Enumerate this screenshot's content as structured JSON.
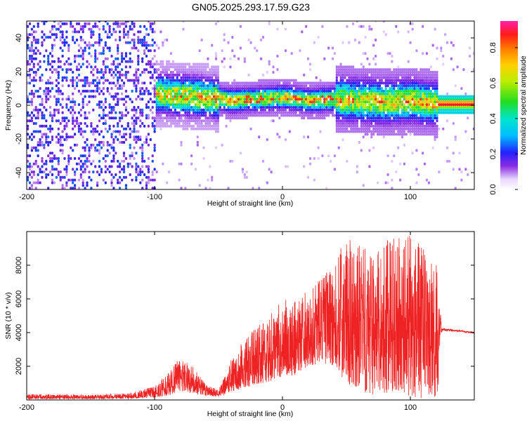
{
  "title": "GN05.2025.293.17.59.G23",
  "colors": {
    "snr_line": "#ee2222",
    "background": "#ffffff",
    "axis": "#000000"
  },
  "chart_data": [
    {
      "type": "heatmap",
      "name": "spectrogram",
      "xlabel": "Height of straight line (km)",
      "ylabel": "Frequency (Hz)",
      "xlim": [
        -200,
        150
      ],
      "ylim": [
        -50,
        50
      ],
      "x_ticks": [
        "-200",
        "-100",
        "0",
        "100"
      ],
      "y_ticks": [
        "-40",
        "-20",
        "0",
        "20",
        "40"
      ],
      "colorbar": {
        "label": "Normalized spectral amplitude",
        "range": [
          0,
          0.95
        ],
        "ticks": [
          "0.0",
          "0.2",
          "0.4",
          "0.6",
          "0.8"
        ]
      },
      "dominant_frequency_trend": {
        "x": [
          -160,
          -140,
          -120,
          -100,
          -80,
          -60,
          -40,
          -20,
          0,
          20,
          40,
          60,
          80,
          100,
          120,
          150
        ],
        "freq_hz": [
          0,
          3,
          5,
          6,
          5,
          4,
          2,
          3,
          4,
          2,
          3,
          2,
          1,
          2,
          0,
          0
        ]
      }
    },
    {
      "type": "line",
      "name": "snr",
      "xlabel": "Height of straight line (km)",
      "ylabel": "SNR (10 * v/v)",
      "xlim": [
        -200,
        150
      ],
      "ylim": [
        0,
        10000
      ],
      "x_ticks": [
        "-200",
        "-100",
        "0",
        "100"
      ],
      "y_ticks": [
        "2000",
        "4000",
        "6000",
        "8000"
      ],
      "envelope": {
        "x": [
          -200,
          -150,
          -120,
          -100,
          -90,
          -80,
          -70,
          -60,
          -50,
          -45,
          -40,
          -30,
          -20,
          -10,
          0,
          10,
          20,
          30,
          40,
          50,
          60,
          70,
          80,
          90,
          100,
          110,
          122,
          125,
          150
        ],
        "min": [
          50,
          60,
          80,
          150,
          250,
          500,
          400,
          250,
          200,
          300,
          500,
          700,
          900,
          1100,
          1400,
          1500,
          2000,
          2200,
          2000,
          1000,
          500,
          300,
          400,
          600,
          200,
          100,
          200,
          4000,
          3900
        ],
        "max": [
          350,
          300,
          400,
          800,
          1600,
          2600,
          2000,
          900,
          600,
          1400,
          2600,
          3600,
          4500,
          5000,
          6000,
          6000,
          6500,
          7300,
          8000,
          9800,
          9600,
          8500,
          9800,
          9600,
          9800,
          9300,
          8500,
          4400,
          4100
        ]
      }
    }
  ]
}
